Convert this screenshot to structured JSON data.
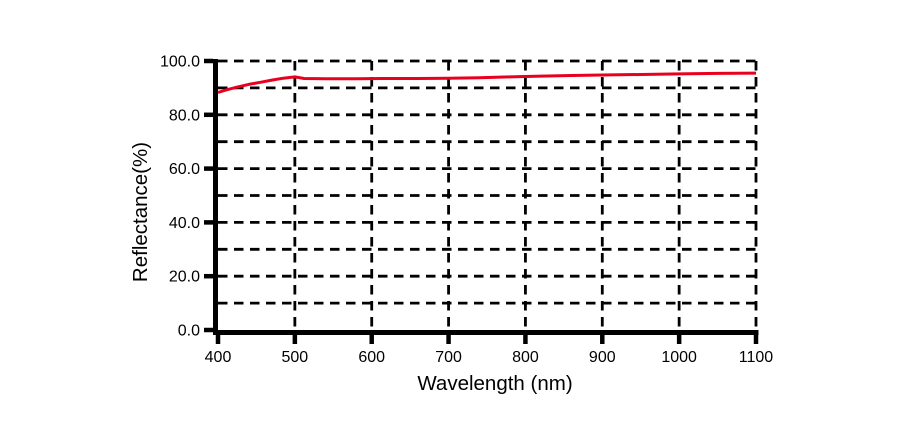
{
  "chart_data": {
    "type": "line",
    "title": "",
    "xlabel": "Wavelength (nm)",
    "ylabel": "Reflectance(%)",
    "xlim": [
      400,
      1100
    ],
    "ylim": [
      0,
      100
    ],
    "x_ticks": [
      400,
      500,
      600,
      700,
      800,
      900,
      1000,
      1100
    ],
    "x_tick_labels": [
      "400",
      "500",
      "600",
      "700",
      "800",
      "900",
      "1000",
      "1100"
    ],
    "y_ticks": [
      0,
      20,
      40,
      60,
      80,
      100
    ],
    "y_tick_labels": [
      "0.0",
      "20.0",
      "40.0",
      "60.0",
      "80.0",
      "100.0"
    ],
    "grid": {
      "on": true,
      "style": "dashed",
      "x_step": 100,
      "y_step": 10,
      "color": "#000000"
    },
    "legend": {
      "visible": false
    },
    "series": [
      {
        "name": "reflectance",
        "color": "#e8001f",
        "x": [
          400,
          410,
          425,
          440,
          455,
          470,
          485,
          500,
          512,
          540,
          580,
          620,
          660,
          700,
          740,
          780,
          820,
          860,
          900,
          950,
          1000,
          1050,
          1100
        ],
        "y": [
          88.3,
          89.2,
          90.3,
          91.3,
          92.1,
          92.9,
          93.6,
          94.1,
          93.5,
          93.4,
          93.4,
          93.5,
          93.5,
          93.6,
          93.8,
          94.1,
          94.4,
          94.6,
          94.8,
          95.0,
          95.2,
          95.4,
          95.5
        ]
      }
    ]
  },
  "colors": {
    "axis": "#000000",
    "grid": "#000000",
    "line": "#e8001f",
    "background": "#ffffff"
  }
}
